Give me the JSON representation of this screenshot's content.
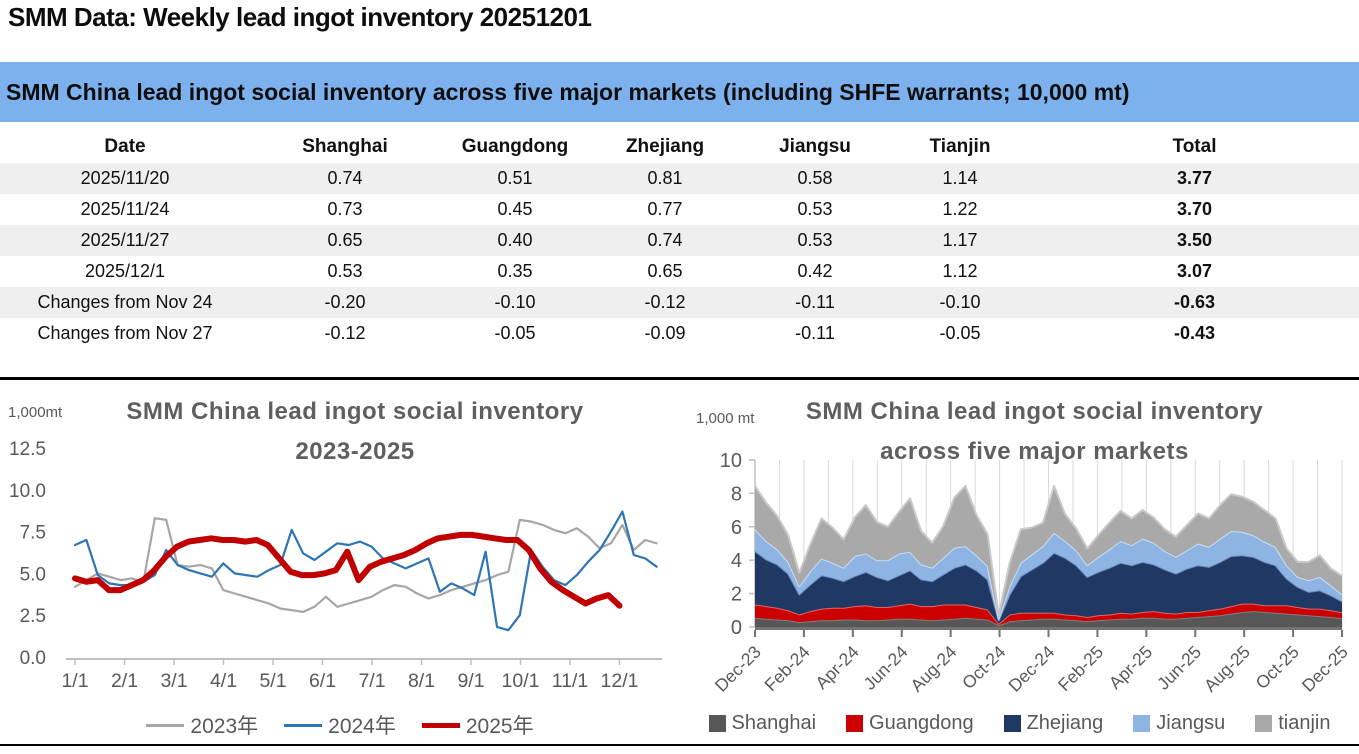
{
  "page": {
    "title": "SMM Data: Weekly lead ingot inventory 20251201",
    "banner": "SMM China lead ingot social inventory across five major markets (including SHFE warrants; 10,000 mt)",
    "banner_bg": "#7DB1EE",
    "stripe_color": "#EFEFEF"
  },
  "table": {
    "columns": [
      "Date",
      "Shanghai",
      "Guangdong",
      "Zhejiang",
      "Jiangsu",
      "Tianjin",
      "Total"
    ],
    "rows": [
      [
        "2025/11/20",
        "0.74",
        "0.51",
        "0.81",
        "0.58",
        "1.14",
        "3.77"
      ],
      [
        "2025/11/24",
        "0.73",
        "0.45",
        "0.77",
        "0.53",
        "1.22",
        "3.70"
      ],
      [
        "2025/11/27",
        "0.65",
        "0.40",
        "0.74",
        "0.53",
        "1.17",
        "3.50"
      ],
      [
        "2025/12/1",
        "0.53",
        "0.35",
        "0.65",
        "0.42",
        "1.12",
        "3.07"
      ],
      [
        "Changes from Nov 24",
        "-0.20",
        "-0.10",
        "-0.12",
        "-0.11",
        "-0.10",
        "-0.63"
      ],
      [
        "Changes from Nov 27",
        "-0.12",
        "-0.05",
        "-0.09",
        "-0.11",
        "-0.05",
        "-0.43"
      ]
    ]
  },
  "chart_data": [
    {
      "type": "line",
      "title_lines": [
        "SMM China lead ingot social inventory",
        "2023-2025"
      ],
      "unit_label": "1,000mt",
      "ylim": [
        0,
        12.5
      ],
      "yticks": [
        "0.0",
        "2.5",
        "5.0",
        "7.5",
        "10.0",
        "12.5"
      ],
      "xticks": [
        "1/1",
        "2/1",
        "3/1",
        "4/1",
        "5/1",
        "6/1",
        "7/1",
        "8/1",
        "9/1",
        "10/1",
        "11/1",
        "12/1"
      ],
      "grid": false,
      "legend_position": "bottom",
      "series": [
        {
          "name": "2023年",
          "color": "#A6A6A6",
          "width": 2.2,
          "span_months": 11.75,
          "values": [
            4.2,
            4.6,
            5.0,
            4.8,
            4.6,
            4.7,
            4.5,
            8.3,
            8.2,
            5.5,
            5.4,
            5.5,
            5.3,
            4.0,
            3.8,
            3.6,
            3.4,
            3.2,
            2.9,
            2.8,
            2.7,
            3.0,
            3.6,
            3.0,
            3.2,
            3.4,
            3.6,
            4.0,
            4.3,
            4.2,
            3.8,
            3.5,
            3.7,
            4.0,
            4.2,
            4.4,
            4.6,
            4.9,
            5.1,
            8.2,
            8.1,
            7.9,
            7.6,
            7.4,
            7.7,
            7.2,
            6.5,
            6.8,
            7.9,
            6.4,
            7.0,
            6.8
          ]
        },
        {
          "name": "2024年",
          "color": "#2E75B6",
          "width": 2.2,
          "span_months": 11.75,
          "values": [
            6.7,
            7.0,
            4.9,
            4.4,
            4.3,
            4.3,
            4.5,
            4.9,
            6.4,
            5.5,
            5.2,
            5.0,
            4.8,
            5.6,
            5.0,
            4.9,
            4.8,
            5.2,
            5.5,
            7.6,
            6.2,
            5.8,
            6.3,
            6.8,
            6.7,
            6.9,
            6.6,
            5.9,
            5.6,
            5.3,
            5.6,
            5.9,
            3.9,
            4.4,
            4.1,
            3.7,
            6.3,
            1.8,
            1.6,
            2.5,
            6.4,
            5.4,
            4.6,
            4.3,
            4.9,
            5.7,
            6.4,
            7.5,
            8.7,
            6.1,
            5.9,
            5.4
          ]
        },
        {
          "name": "2025年",
          "color": "#C00000",
          "width": 6,
          "span_months": 11.0,
          "values": [
            4.7,
            4.5,
            4.6,
            4.0,
            4.0,
            4.3,
            4.6,
            5.2,
            6.0,
            6.6,
            6.9,
            7.0,
            7.1,
            7.0,
            7.0,
            6.9,
            7.0,
            6.7,
            5.9,
            5.1,
            4.9,
            4.9,
            5.0,
            5.2,
            6.3,
            4.6,
            5.4,
            5.7,
            5.9,
            6.1,
            6.4,
            6.8,
            7.1,
            7.2,
            7.3,
            7.3,
            7.2,
            7.1,
            7.0,
            7.0,
            6.4,
            5.3,
            4.5,
            4.0,
            3.6,
            3.2,
            3.5,
            3.7,
            3.07
          ]
        }
      ]
    },
    {
      "type": "area",
      "title_lines": [
        "SMM China lead ingot social inventory",
        "across five major markets"
      ],
      "unit_label": "1,000 mt",
      "ylim": [
        0,
        10
      ],
      "yticks": [
        "0",
        "2",
        "4",
        "6",
        "8",
        "10"
      ],
      "xticks": [
        "Dec-23",
        "Feb-24",
        "Apr-24",
        "Jun-24",
        "Aug-24",
        "Oct-24",
        "Dec-24",
        "Feb-25",
        "Apr-25",
        "Jun-25",
        "Aug-25",
        "Oct-25",
        "Dec-25"
      ],
      "months_span": 24,
      "grid": true,
      "gridline_color": "#D9D9D9",
      "legend_position": "bottom",
      "series": [
        {
          "name": "Shanghai",
          "color": "#575757",
          "edge": "#7F7F7F",
          "values": [
            0.55,
            0.5,
            0.45,
            0.4,
            0.3,
            0.35,
            0.4,
            0.4,
            0.45,
            0.45,
            0.4,
            0.4,
            0.45,
            0.5,
            0.5,
            0.45,
            0.4,
            0.45,
            0.5,
            0.55,
            0.5,
            0.45,
            0.1,
            0.35,
            0.4,
            0.45,
            0.5,
            0.5,
            0.45,
            0.4,
            0.35,
            0.4,
            0.45,
            0.5,
            0.5,
            0.55,
            0.55,
            0.5,
            0.5,
            0.55,
            0.6,
            0.65,
            0.7,
            0.8,
            0.9,
            0.95,
            0.9,
            0.85,
            0.8,
            0.75,
            0.7,
            0.65,
            0.6,
            0.53
          ]
        },
        {
          "name": "Guangdong",
          "color": "#CC0000",
          "edge": "#E06666",
          "values": [
            0.8,
            0.75,
            0.7,
            0.6,
            0.45,
            0.6,
            0.7,
            0.75,
            0.7,
            0.8,
            0.9,
            0.8,
            0.75,
            0.8,
            0.9,
            0.8,
            0.85,
            0.9,
            0.85,
            0.8,
            0.7,
            0.6,
            0.1,
            0.4,
            0.45,
            0.4,
            0.35,
            0.35,
            0.3,
            0.3,
            0.25,
            0.3,
            0.3,
            0.35,
            0.3,
            0.35,
            0.4,
            0.35,
            0.3,
            0.35,
            0.3,
            0.35,
            0.4,
            0.45,
            0.5,
            0.45,
            0.4,
            0.45,
            0.5,
            0.45,
            0.4,
            0.45,
            0.4,
            0.35
          ]
        },
        {
          "name": "Zhejiang",
          "color": "#203864",
          "edge": "#6C8EBF",
          "values": [
            3.2,
            2.8,
            2.6,
            2.2,
            1.2,
            1.6,
            2.0,
            1.8,
            1.6,
            1.8,
            2.0,
            1.8,
            1.6,
            1.8,
            2.0,
            1.6,
            1.5,
            1.8,
            2.2,
            2.4,
            2.2,
            1.8,
            0.2,
            1.2,
            2.2,
            2.6,
            3.0,
            3.6,
            3.4,
            3.0,
            2.4,
            2.6,
            2.8,
            3.0,
            2.9,
            3.0,
            2.8,
            2.6,
            2.4,
            2.6,
            2.8,
            2.6,
            2.8,
            3.0,
            2.9,
            2.8,
            2.6,
            2.4,
            1.6,
            1.2,
            1.0,
            1.1,
            0.9,
            0.65
          ]
        },
        {
          "name": "Jiangsu",
          "color": "#8EB4E3",
          "edge": "#C9DEF5",
          "values": [
            1.3,
            1.1,
            0.9,
            0.7,
            0.5,
            0.8,
            1.0,
            0.9,
            0.8,
            1.2,
            1.1,
            1.0,
            1.2,
            1.3,
            1.1,
            0.9,
            0.8,
            1.0,
            1.2,
            1.1,
            0.9,
            0.8,
            0.1,
            0.5,
            0.8,
            0.9,
            1.0,
            1.2,
            1.0,
            0.9,
            0.7,
            0.9,
            1.1,
            1.3,
            1.2,
            1.4,
            1.3,
            1.1,
            1.0,
            1.1,
            1.3,
            1.2,
            1.4,
            1.5,
            1.4,
            1.3,
            1.2,
            1.1,
            0.8,
            0.6,
            0.7,
            0.8,
            0.6,
            0.42
          ]
        },
        {
          "name": "tianjin",
          "color": "#A9A9A9",
          "edge": "#C9C9C9",
          "values": [
            2.6,
            2.3,
            2.0,
            1.6,
            0.8,
            1.6,
            2.4,
            2.1,
            1.7,
            2.3,
            2.9,
            2.3,
            2.0,
            2.5,
            3.2,
            2.0,
            1.5,
            1.9,
            3.0,
            3.6,
            2.4,
            1.9,
            0.2,
            1.4,
            2.0,
            1.6,
            1.4,
            2.8,
            1.6,
            1.3,
            1.0,
            1.3,
            1.6,
            1.8,
            1.6,
            1.7,
            1.5,
            1.3,
            1.2,
            1.5,
            1.8,
            1.7,
            2.0,
            2.2,
            2.1,
            2.0,
            1.9,
            1.7,
            1.0,
            0.9,
            1.1,
            1.3,
            1.0,
            1.12
          ]
        }
      ]
    }
  ]
}
